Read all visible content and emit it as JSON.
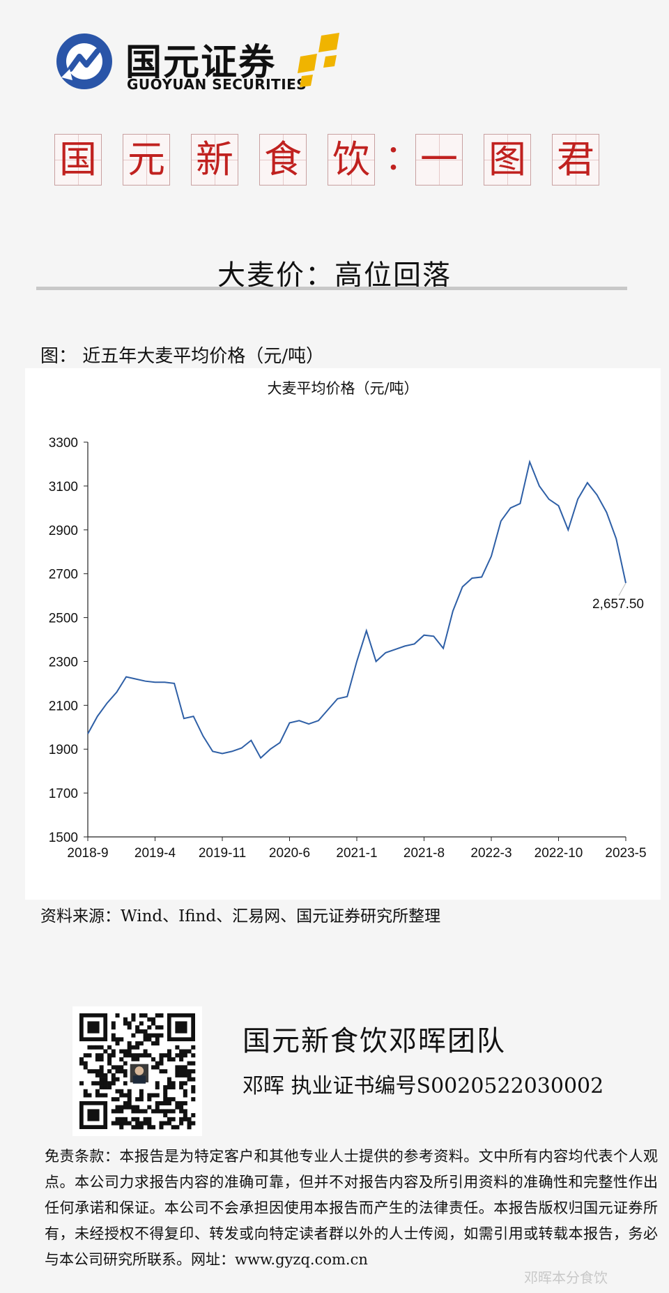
{
  "brand": {
    "name_cn": "国元证券",
    "name_en": "GUOYUAN SECURITIES",
    "logo_icon": "guoyuan-logo-icon",
    "star_icon": "gold-stars-icon",
    "accent": "#2a55a8",
    "gold": "#f0b400"
  },
  "banner": {
    "chars": [
      "国",
      "元",
      "新",
      "食",
      "饮",
      "一",
      "图",
      "君"
    ],
    "colon": "：",
    "color": "#c0211f"
  },
  "headline": "大麦价：高位回落",
  "figure_caption": "图：  近五年大麦平均价格（元/吨）",
  "chart_data": {
    "type": "line",
    "title": "大麦平均价格（元/吨）",
    "xlabel": "",
    "ylabel": "",
    "ylim": [
      1500,
      3300
    ],
    "yticks": [
      "1500",
      "1700",
      "1900",
      "2100",
      "2300",
      "2500",
      "2700",
      "2900",
      "3100",
      "3300"
    ],
    "xticks": [
      "2018-9",
      "2019-4",
      "2019-11",
      "2020-6",
      "2021-1",
      "2021-8",
      "2022-3",
      "2022-10",
      "2023-5"
    ],
    "xrange": [
      "2018-09",
      "2023-05"
    ],
    "grid": false,
    "line_color": "#2e5fa6",
    "end_label": "2,657.50",
    "series": [
      {
        "x": [
          "2018-09",
          "2018-10",
          "2018-11",
          "2018-12",
          "2019-01",
          "2019-02",
          "2019-03",
          "2019-04",
          "2019-05",
          "2019-06",
          "2019-07",
          "2019-08",
          "2019-09",
          "2019-10",
          "2019-11",
          "2019-12",
          "2020-01",
          "2020-02",
          "2020-03",
          "2020-04",
          "2020-05",
          "2020-06",
          "2020-07",
          "2020-08",
          "2020-09",
          "2020-10",
          "2020-11",
          "2020-12",
          "2021-01",
          "2021-02",
          "2021-03",
          "2021-04",
          "2021-05",
          "2021-06",
          "2021-07",
          "2021-08",
          "2021-09",
          "2021-10",
          "2021-11",
          "2021-12",
          "2022-01",
          "2022-02",
          "2022-03",
          "2022-04",
          "2022-05",
          "2022-06",
          "2022-07",
          "2022-08",
          "2022-09",
          "2022-10",
          "2022-11",
          "2022-12",
          "2023-01",
          "2023-02",
          "2023-03",
          "2023-04",
          "2023-05"
        ],
        "y": [
          1970,
          2050,
          2110,
          2160,
          2230,
          2220,
          2210,
          2205,
          2205,
          2200,
          2040,
          2050,
          1960,
          1890,
          1880,
          1890,
          1905,
          1940,
          1860,
          1900,
          1930,
          2020,
          2030,
          2015,
          2030,
          2080,
          2130,
          2140,
          2300,
          2440,
          2300,
          2340,
          2355,
          2370,
          2380,
          2420,
          2415,
          2360,
          2530,
          2640,
          2680,
          2685,
          2780,
          2940,
          3000,
          3020,
          3210,
          3100,
          3040,
          3010,
          2900,
          3040,
          3115,
          3060,
          2980,
          2860,
          2657.5
        ]
      }
    ]
  },
  "source": "资料来源：Wind、Ifind、汇易网、国元证券研究所整理",
  "qr_icon": "qr-code-icon",
  "team": "国元新食饮邓晖团队",
  "analyst": "邓晖  执业证书编号S0020522030002",
  "disclaimer": "免责条款：本报告是为特定客户和其他专业人士提供的参考资料。文中所有内容均代表个人观点。本公司力求报告内容的准确可靠，但并不对报告内容及所引用资料的准确性和完整性作出任何承诺和保证。本公司不会承担因使用本报告而产生的法律责任。本报告版权归国元证券所有，未经授权不得复印、转发或向特定读者群以外的人士传阅，如需引用或转载本报告，务必与本公司研究所联系。网址：www.gyzq.com.cn",
  "watermark": "邓晖本分食饮"
}
